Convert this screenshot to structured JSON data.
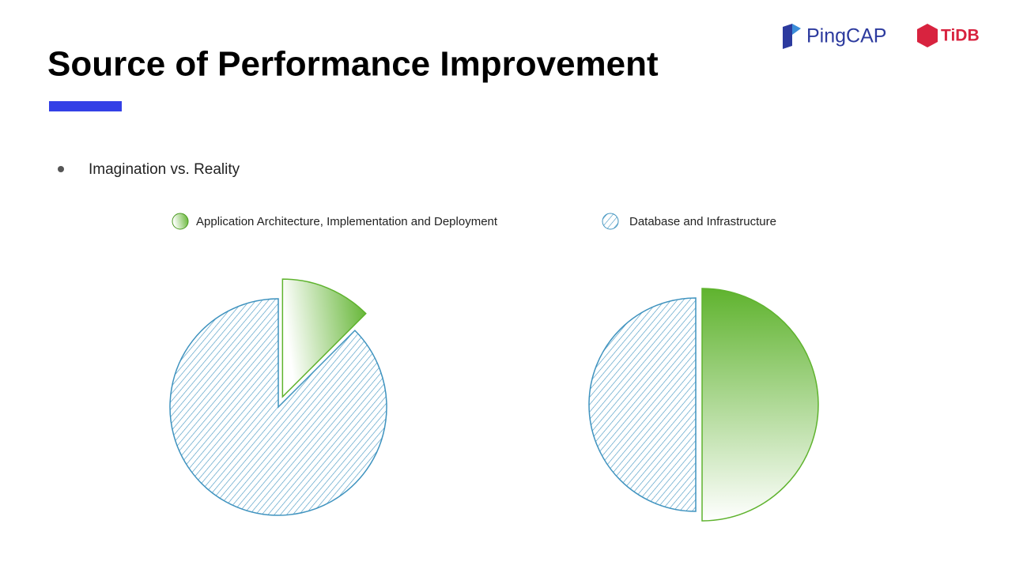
{
  "title": "Source of Performance Improvement",
  "logos": [
    "PingCAP",
    "TiDB"
  ],
  "bullet": "Imagination vs. Reality",
  "legend": [
    "Application Architecture, Implementation and Deployment",
    "Database and Infrastructure"
  ],
  "chart_data": [
    {
      "type": "pie",
      "values": [
        12.5,
        87.5
      ],
      "colors": [
        "#5fb32e",
        "#3f93bf"
      ]
    },
    {
      "type": "pie",
      "values": [
        50,
        50
      ],
      "colors": [
        "#5fb32e",
        "#3f93bf"
      ]
    }
  ]
}
